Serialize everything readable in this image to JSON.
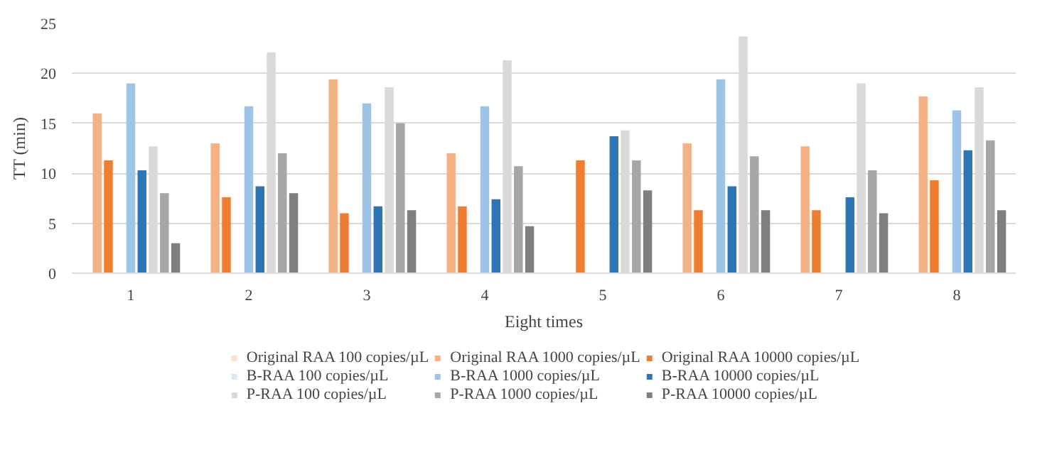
{
  "chart_data": {
    "type": "bar",
    "xlabel": "Eight times",
    "ylabel": "TT (min)",
    "categories": [
      "1",
      "2",
      "3",
      "4",
      "5",
      "6",
      "7",
      "8"
    ],
    "series": [
      {
        "name": "Original RAA 100 copies/µL",
        "color": "#fbe0d1",
        "values": [
          null,
          null,
          null,
          null,
          null,
          null,
          null,
          null
        ]
      },
      {
        "name": "Original RAA 1000 copies/µL",
        "color": "#f4b183",
        "values": [
          16,
          13,
          19.4,
          12,
          null,
          13,
          12.7,
          17.7
        ]
      },
      {
        "name": "Original RAA 10000 copies/µL",
        "color": "#ed7d31",
        "values": [
          11.3,
          7.6,
          6,
          6.7,
          11.3,
          6.3,
          6.3,
          9.3
        ]
      },
      {
        "name": "B-RAA 100 copies/µL",
        "color": "#dae7f5",
        "values": [
          null,
          null,
          null,
          null,
          null,
          null,
          null,
          null
        ]
      },
      {
        "name": "B-RAA 1000 copies/µL",
        "color": "#9dc3e6",
        "values": [
          19,
          16.7,
          17,
          16.7,
          null,
          19.4,
          null,
          16.3
        ]
      },
      {
        "name": "B-RAA 10000 copies/µL",
        "color": "#2e75b6",
        "values": [
          10.3,
          8.7,
          6.7,
          7.4,
          13.7,
          8.7,
          7.6,
          12.3
        ]
      },
      {
        "name": "P-RAA 100 copies/µL",
        "color": "#d9d9d9",
        "values": [
          12.7,
          22.1,
          18.6,
          21.3,
          14.3,
          23.7,
          19,
          18.6
        ]
      },
      {
        "name": "P-RAA 1000 copies/µL",
        "color": "#a6a6a6",
        "values": [
          8,
          12,
          15,
          10.7,
          11.3,
          11.7,
          10.3,
          13.3
        ]
      },
      {
        "name": "P-RAA 10000 copies/µL",
        "color": "#7f7f7f",
        "values": [
          3,
          8,
          6.3,
          4.7,
          8.3,
          6.3,
          6,
          6.3
        ]
      }
    ],
    "ylim": [
      0,
      25
    ],
    "yticks": [
      0,
      5,
      10,
      15,
      20,
      25
    ],
    "grid": "y",
    "legend": "bottom"
  }
}
